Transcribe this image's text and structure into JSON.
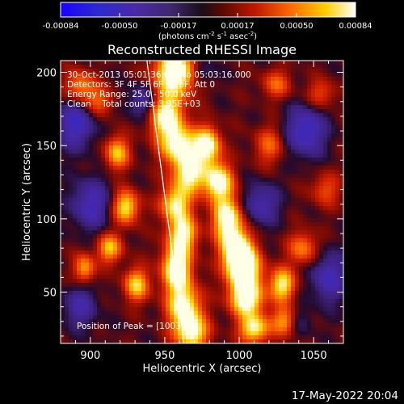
{
  "chart_data": {
    "type": "heatmap",
    "title": "Reconstructed RHESSI Image",
    "xlabel": "Heliocentric X (arcsec)",
    "ylabel": "Heliocentric Y (arcsec)",
    "xlim": [
      880,
      1070
    ],
    "ylim": [
      15,
      208
    ],
    "x_ticks": [
      900,
      950,
      1000,
      1050
    ],
    "y_ticks": [
      50,
      100,
      150,
      200
    ],
    "colorbar": {
      "range": [
        -0.00084,
        0.00084
      ],
      "ticks": [
        "-0.00084",
        "-0.00050",
        "-0.00017",
        "0.00017",
        "0.00050",
        "0.00084"
      ],
      "units_main": "(photons cm",
      "units_sup1": "-2",
      "units_mid": " s",
      "units_sup2": "-1",
      "units_mid2": " asec",
      "units_sup3": "-2",
      "units_end": ")",
      "colormap": "blue-purple-red-yellow-white"
    },
    "annotations": [
      "30-Oct-2013 05:01:36.000 to 05:03:16.000",
      "Detectors: 3F 4F 5F 6F 7F 8F, Att 0",
      "Energy Range: 25.0 - 50.0 keV",
      "Clean    Total counts: 3.95E+03"
    ],
    "peak_label": "Position of Peak = [1003,65]",
    "peak": [
      1003,
      65
    ],
    "limb_line": [
      [
        938,
        208
      ],
      [
        963,
        15
      ]
    ],
    "blobs": [
      {
        "x": 957,
        "y": 200,
        "amp": 1.15,
        "sx": 10,
        "sy": 11
      },
      {
        "x": 951,
        "y": 170,
        "amp": 1.0,
        "sx": 8,
        "sy": 10
      },
      {
        "x": 960,
        "y": 150,
        "amp": 0.95,
        "sx": 9,
        "sy": 9
      },
      {
        "x": 966,
        "y": 130,
        "amp": 0.9,
        "sx": 8,
        "sy": 9
      },
      {
        "x": 957,
        "y": 110,
        "amp": 0.85,
        "sx": 7,
        "sy": 8
      },
      {
        "x": 962,
        "y": 90,
        "amp": 0.9,
        "sx": 7,
        "sy": 9
      },
      {
        "x": 958,
        "y": 66,
        "amp": 1.1,
        "sx": 7,
        "sy": 11
      },
      {
        "x": 963,
        "y": 40,
        "amp": 0.95,
        "sx": 8,
        "sy": 10
      },
      {
        "x": 968,
        "y": 22,
        "amp": 0.9,
        "sx": 8,
        "sy": 8
      },
      {
        "x": 979,
        "y": 150,
        "amp": 0.95,
        "sx": 6,
        "sy": 9
      },
      {
        "x": 986,
        "y": 125,
        "amp": 1.0,
        "sx": 7,
        "sy": 9
      },
      {
        "x": 992,
        "y": 100,
        "amp": 1.0,
        "sx": 7,
        "sy": 10
      },
      {
        "x": 998,
        "y": 80,
        "amp": 1.05,
        "sx": 7,
        "sy": 9
      },
      {
        "x": 1003,
        "y": 65,
        "amp": 1.25,
        "sx": 8,
        "sy": 10
      },
      {
        "x": 1005,
        "y": 45,
        "amp": 1.0,
        "sx": 8,
        "sy": 8
      },
      {
        "x": 1010,
        "y": 25,
        "amp": 0.9,
        "sx": 7,
        "sy": 7
      },
      {
        "x": 1029,
        "y": 55,
        "amp": 0.85,
        "sx": 6,
        "sy": 8
      },
      {
        "x": 1031,
        "y": 30,
        "amp": 0.75,
        "sx": 6,
        "sy": 7
      },
      {
        "x": 1020,
        "y": 150,
        "amp": 0.45,
        "sx": 7,
        "sy": 9
      },
      {
        "x": 1043,
        "y": 80,
        "amp": 0.55,
        "sx": 7,
        "sy": 8
      },
      {
        "x": 918,
        "y": 145,
        "amp": 0.7,
        "sx": 6,
        "sy": 8
      },
      {
        "x": 924,
        "y": 108,
        "amp": 0.85,
        "sx": 6,
        "sy": 8
      },
      {
        "x": 913,
        "y": 80,
        "amp": 0.7,
        "sx": 6,
        "sy": 7
      },
      {
        "x": 931,
        "y": 55,
        "amp": 0.75,
        "sx": 6,
        "sy": 8
      },
      {
        "x": 896,
        "y": 66,
        "amp": 0.65,
        "sx": 5,
        "sy": 7
      },
      {
        "x": 893,
        "y": 190,
        "amp": 0.6,
        "sx": 7,
        "sy": 8
      },
      {
        "x": 906,
        "y": 180,
        "amp": 0.45,
        "sx": 7,
        "sy": 7
      },
      {
        "x": 1025,
        "y": 192,
        "amp": 0.45,
        "sx": 7,
        "sy": 7
      },
      {
        "x": 1055,
        "y": 185,
        "amp": 0.4,
        "sx": 7,
        "sy": 7
      },
      {
        "x": 1058,
        "y": 120,
        "amp": 0.4,
        "sx": 7,
        "sy": 8
      }
    ],
    "troughs": [
      {
        "x": 890,
        "y": 165,
        "amp": -0.6,
        "sx": 9,
        "sy": 12
      },
      {
        "x": 900,
        "y": 110,
        "amp": -0.55,
        "sx": 9,
        "sy": 12
      },
      {
        "x": 893,
        "y": 40,
        "amp": -0.45,
        "sx": 8,
        "sy": 10
      },
      {
        "x": 935,
        "y": 180,
        "amp": -0.45,
        "sx": 7,
        "sy": 8
      },
      {
        "x": 1015,
        "y": 110,
        "amp": -0.5,
        "sx": 8,
        "sy": 10
      },
      {
        "x": 1045,
        "y": 160,
        "amp": -0.65,
        "sx": 9,
        "sy": 12
      },
      {
        "x": 1060,
        "y": 60,
        "amp": -0.55,
        "sx": 8,
        "sy": 12
      },
      {
        "x": 1038,
        "y": 30,
        "amp": -0.3,
        "sx": 7,
        "sy": 7
      },
      {
        "x": 975,
        "y": 200,
        "amp": -0.35,
        "sx": 6,
        "sy": 6
      }
    ]
  },
  "footer": {
    "timestamp": "17-May-2022 20:04"
  }
}
